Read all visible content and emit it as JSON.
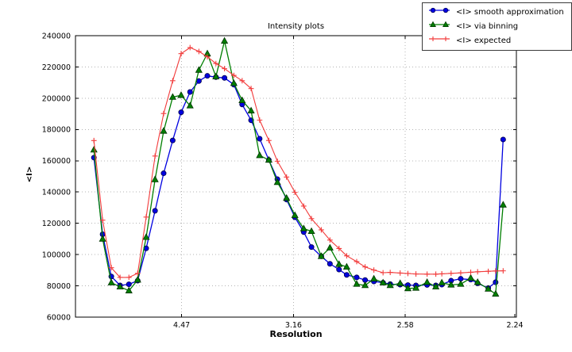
{
  "figure": {
    "title": "Intensity plots",
    "xlabel": "Resolution",
    "ylabel": "<I>"
  },
  "legend": {
    "items": [
      {
        "label": "<I> smooth approximation",
        "marker": "circle",
        "color": "#0000e0"
      },
      {
        "label": "<I> via binning",
        "marker": "triangle",
        "color": "#007f00"
      },
      {
        "label": "<I> expected",
        "marker": "plus",
        "color": "#f23b3b"
      }
    ]
  },
  "chart_data": {
    "type": "line",
    "title": "Intensity plots",
    "xlabel": "Resolution",
    "ylabel": "<I>",
    "grid": true,
    "legend_position": "upper right",
    "ylim": [
      60000,
      240000
    ],
    "y_ticks": [
      60000,
      80000,
      100000,
      120000,
      140000,
      160000,
      180000,
      200000,
      220000,
      240000
    ],
    "x_axis": {
      "tick_labels": [
        "4.47",
        "3.16",
        "2.58",
        "2.24"
      ],
      "tick_values": [
        4.47,
        3.16,
        2.58,
        2.24
      ],
      "scale": "resolution d-spacing, linear in 1/d^2",
      "s_range": [
        0.0025,
        0.2
      ]
    },
    "x_dspacing": [
      9.64,
      8.26,
      7.34,
      6.67,
      6.15,
      5.74,
      5.41,
      5.12,
      4.88,
      4.66,
      4.48,
      4.31,
      4.16,
      4.03,
      3.91,
      3.8,
      3.69,
      3.6,
      3.51,
      3.43,
      3.35,
      3.28,
      3.21,
      3.15,
      3.09,
      3.04,
      2.98,
      2.93,
      2.88,
      2.84,
      2.79,
      2.75,
      2.71,
      2.67,
      2.64,
      2.6,
      2.57,
      2.54,
      2.5,
      2.47,
      2.45,
      2.42,
      2.39,
      2.36,
      2.34,
      2.31,
      2.29,
      2.27
    ],
    "series": [
      {
        "name": "<I> smooth approximation",
        "color": "#0000e0",
        "marker": "circle",
        "marker_edge": "#00004a",
        "values": [
          162000,
          113000,
          86000,
          80300,
          81000,
          83300,
          104000,
          128000,
          152000,
          173000,
          191000,
          204000,
          211000,
          214300,
          213500,
          213000,
          208700,
          196000,
          185900,
          174100,
          160500,
          148200,
          135200,
          123900,
          114400,
          104800,
          98900,
          94100,
          90400,
          87000,
          85400,
          83700,
          82800,
          82000,
          81100,
          80800,
          80500,
          80300,
          80600,
          80300,
          80800,
          83300,
          84500,
          84000,
          81600,
          78600,
          82300,
          173600
        ]
      },
      {
        "name": "<I> via binning",
        "color": "#007f00",
        "marker": "triangle",
        "marker_edge": "#003300",
        "values": [
          167000,
          110000,
          82000,
          79400,
          76900,
          83800,
          111100,
          148000,
          179000,
          200700,
          201900,
          195200,
          218000,
          228500,
          213800,
          236600,
          209600,
          198600,
          192000,
          163400,
          160500,
          146200,
          136100,
          125100,
          116600,
          114900,
          98900,
          104300,
          93800,
          92100,
          81100,
          80300,
          84500,
          82000,
          80300,
          81600,
          78300,
          78600,
          82300,
          79400,
          82000,
          80600,
          81100,
          85000,
          82300,
          78000,
          74800,
          131800
        ]
      },
      {
        "name": "<I> expected",
        "color": "#f23b3b",
        "marker": "plus",
        "marker_edge": "#f23b3b",
        "values": [
          172900,
          122000,
          91600,
          85400,
          85400,
          88000,
          124000,
          163000,
          190200,
          211200,
          228500,
          232400,
          229900,
          226500,
          222200,
          218900,
          214600,
          211200,
          206200,
          186000,
          173000,
          159700,
          149600,
          139800,
          131000,
          123000,
          115800,
          109300,
          103900,
          99200,
          95500,
          92100,
          90100,
          88400,
          88600,
          88200,
          87900,
          87600,
          87500,
          87500,
          87700,
          88000,
          88300,
          88700,
          89000,
          89300,
          89500,
          89600
        ]
      }
    ]
  },
  "style": {
    "grid_color": "#b4b4b4",
    "spine_color": "#000000",
    "background": "#ffffff"
  }
}
